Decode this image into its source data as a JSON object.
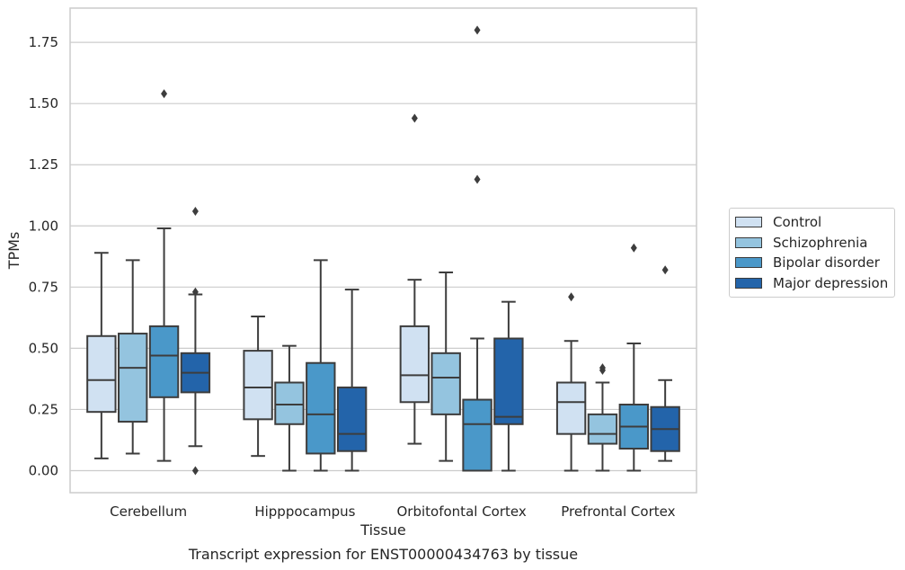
{
  "chart_data": {
    "type": "boxplot",
    "title": "Transcript expression for ENST00000434763 by tissue",
    "xlabel": "Tissue",
    "ylabel": "TPMs",
    "ylim": [
      -0.09,
      1.89
    ],
    "yticks": [
      "0.00",
      "0.25",
      "0.50",
      "0.75",
      "1.00",
      "1.25",
      "1.50",
      "1.75"
    ],
    "ytick_values": [
      0,
      0.25,
      0.5,
      0.75,
      1.0,
      1.25,
      1.5,
      1.75
    ],
    "grid": "horizontal",
    "legend_position": "right",
    "categories": [
      "Cerebellum",
      "Hipppocampus",
      "Orbitofontal Cortex",
      "Prefrontal Cortex"
    ],
    "series": [
      {
        "name": "Control",
        "color": "#d0e1f2",
        "boxes": [
          {
            "whislo": 0.05,
            "q1": 0.24,
            "med": 0.37,
            "q3": 0.55,
            "whishi": 0.89,
            "fliers": []
          },
          {
            "whislo": 0.06,
            "q1": 0.21,
            "med": 0.34,
            "q3": 0.49,
            "whishi": 0.63,
            "fliers": []
          },
          {
            "whislo": 0.11,
            "q1": 0.28,
            "med": 0.39,
            "q3": 0.59,
            "whishi": 0.78,
            "fliers": [
              1.44
            ]
          },
          {
            "whislo": 0.0,
            "q1": 0.15,
            "med": 0.28,
            "q3": 0.36,
            "whishi": 0.53,
            "fliers": [
              0.71
            ]
          }
        ]
      },
      {
        "name": "Schizophrenia",
        "color": "#94c4df",
        "boxes": [
          {
            "whislo": 0.07,
            "q1": 0.2,
            "med": 0.42,
            "q3": 0.56,
            "whishi": 0.86,
            "fliers": []
          },
          {
            "whislo": 0.0,
            "q1": 0.19,
            "med": 0.27,
            "q3": 0.36,
            "whishi": 0.51,
            "fliers": []
          },
          {
            "whislo": 0.04,
            "q1": 0.23,
            "med": 0.38,
            "q3": 0.48,
            "whishi": 0.81,
            "fliers": []
          },
          {
            "whislo": 0.0,
            "q1": 0.11,
            "med": 0.15,
            "q3": 0.23,
            "whishi": 0.36,
            "fliers": [
              0.41,
              0.42
            ]
          }
        ]
      },
      {
        "name": "Bipolar disorder",
        "color": "#4a98c9",
        "boxes": [
          {
            "whislo": 0.04,
            "q1": 0.3,
            "med": 0.47,
            "q3": 0.59,
            "whishi": 0.99,
            "fliers": [
              1.54
            ]
          },
          {
            "whislo": 0.0,
            "q1": 0.07,
            "med": 0.23,
            "q3": 0.44,
            "whishi": 0.86,
            "fliers": []
          },
          {
            "whislo": 0.0,
            "q1": 0.0,
            "med": 0.19,
            "q3": 0.29,
            "whishi": 0.54,
            "fliers": [
              1.19,
              1.8
            ]
          },
          {
            "whislo": 0.0,
            "q1": 0.09,
            "med": 0.18,
            "q3": 0.27,
            "whishi": 0.52,
            "fliers": [
              0.91
            ]
          }
        ]
      },
      {
        "name": "Major depression",
        "color": "#2364aa",
        "boxes": [
          {
            "whislo": 0.1,
            "q1": 0.32,
            "med": 0.4,
            "q3": 0.48,
            "whishi": 0.72,
            "fliers": [
              0.0,
              0.73,
              1.06
            ]
          },
          {
            "whislo": 0.0,
            "q1": 0.08,
            "med": 0.15,
            "q3": 0.34,
            "whishi": 0.74,
            "fliers": []
          },
          {
            "whislo": 0.0,
            "q1": 0.19,
            "med": 0.22,
            "q3": 0.54,
            "whishi": 0.69,
            "fliers": []
          },
          {
            "whislo": 0.04,
            "q1": 0.08,
            "med": 0.17,
            "q3": 0.26,
            "whishi": 0.37,
            "fliers": [
              0.82
            ]
          }
        ]
      }
    ]
  }
}
